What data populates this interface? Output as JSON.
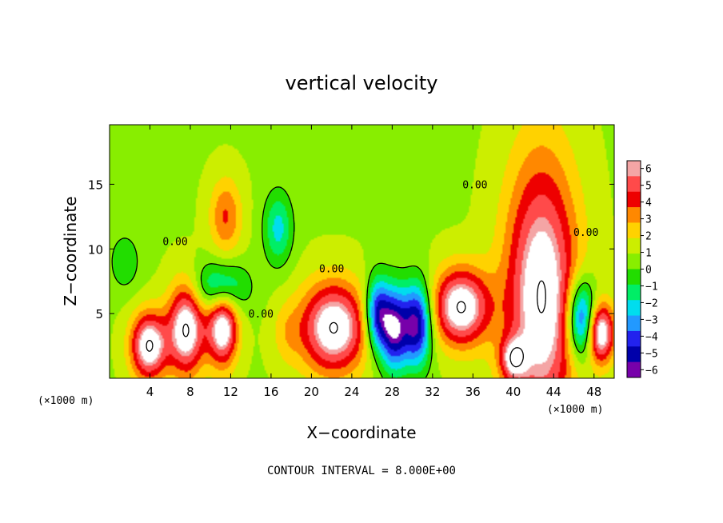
{
  "chart_data": {
    "type": "heatmap",
    "title": "vertical velocity",
    "xlabel": "X−coordinate",
    "ylabel": "Z−coordinate",
    "x_unit_left": "(×1000 m)",
    "x_unit_right": "(×1000 m)",
    "footer": "CONTOUR INTERVAL = 8.000E+00",
    "xlim": [
      0,
      50
    ],
    "ylim": [
      0,
      19.6
    ],
    "x_ticks": [
      4,
      8,
      12,
      16,
      20,
      24,
      28,
      32,
      36,
      40,
      44,
      48
    ],
    "y_ticks": [
      5,
      10,
      15
    ],
    "colorbar": {
      "levels": [
        6,
        5,
        4,
        3,
        2,
        1,
        0,
        -1,
        -2,
        -3,
        -4,
        -5,
        -6
      ],
      "labels": [
        "6",
        "5",
        "4",
        "3",
        "2",
        "1",
        "0",
        "−1",
        "−2",
        "−3",
        "−4",
        "−5",
        "−6"
      ],
      "colors": [
        "#f4a5a5",
        "#ff4a4a",
        "#ee0000",
        "#ff8800",
        "#ffd200",
        "#ccee00",
        "#88ee00",
        "#22dd00",
        "#00ee66",
        "#00ddee",
        "#2299ff",
        "#2222ee",
        "#0000aa",
        "#7700aa"
      ]
    },
    "contour_labels": [
      {
        "text": "0.00",
        "x": 6.5,
        "z": 10.3
      },
      {
        "text": "0.00",
        "x": 15,
        "z": 4.7
      },
      {
        "text": "0.00",
        "x": 22,
        "z": 8.2
      },
      {
        "text": "0.00",
        "x": 36.2,
        "z": 14.7
      },
      {
        "text": "0.00",
        "x": 47.2,
        "z": 11
      }
    ],
    "cells": [
      {
        "x": 3.9,
        "z": 2.5,
        "rx": 1.8,
        "rz": 2.6,
        "w": 7.2
      },
      {
        "x": 7.6,
        "z": 3.8,
        "rx": 1.8,
        "rz": 3.5,
        "w": 7.2
      },
      {
        "x": 11.2,
        "z": 4.0,
        "rx": 1.5,
        "rz": 3.0,
        "w": 7.2
      },
      {
        "x": 11.5,
        "z": 12.5,
        "rx": 1.6,
        "rz": 3.0,
        "w": 3.2
      },
      {
        "x": 16.7,
        "z": 11.6,
        "rx": 1.4,
        "rz": 2.8,
        "w": -3.3
      },
      {
        "x": 22.2,
        "z": 3.9,
        "rx": 3.3,
        "rz": 3.5,
        "w": 7.2
      },
      {
        "x": 28.2,
        "z": 3.8,
        "rx": 1.4,
        "rz": 3.2,
        "w": -7.2
      },
      {
        "x": 30.5,
        "z": 4.2,
        "rx": 1.4,
        "rz": 3.2,
        "w": -7.2
      },
      {
        "x": 34.8,
        "z": 5.5,
        "rx": 2.8,
        "rz": 3.0,
        "w": 7.2
      },
      {
        "x": 42.8,
        "z": 6.3,
        "rx": 3.6,
        "rz": 10.5,
        "w": 7.2
      },
      {
        "x": 46.8,
        "z": 4.5,
        "rx": 1.4,
        "rz": 3.0,
        "w": -7.2
      },
      {
        "x": 48.6,
        "z": 3.5,
        "rx": 1.4,
        "rz": 2.3,
        "w": 7.2
      },
      {
        "x": 26.5,
        "z": 5.0,
        "rx": 1.2,
        "rz": 2.8,
        "w": -6.0
      },
      {
        "x": 40.0,
        "z": 1.5,
        "rx": 1.3,
        "rz": 1.6,
        "w": 4.5
      },
      {
        "x": 11.0,
        "z": 7.0,
        "rx": 2.5,
        "rz": 2.0,
        "w": -4.5
      },
      {
        "x": 1.5,
        "z": 9.0,
        "rx": 1.5,
        "rz": 2.2,
        "w": -1.8
      },
      {
        "x": 17.5,
        "z": 3.5,
        "rx": 1.5,
        "rz": 2.5,
        "w": 1.3
      }
    ]
  }
}
